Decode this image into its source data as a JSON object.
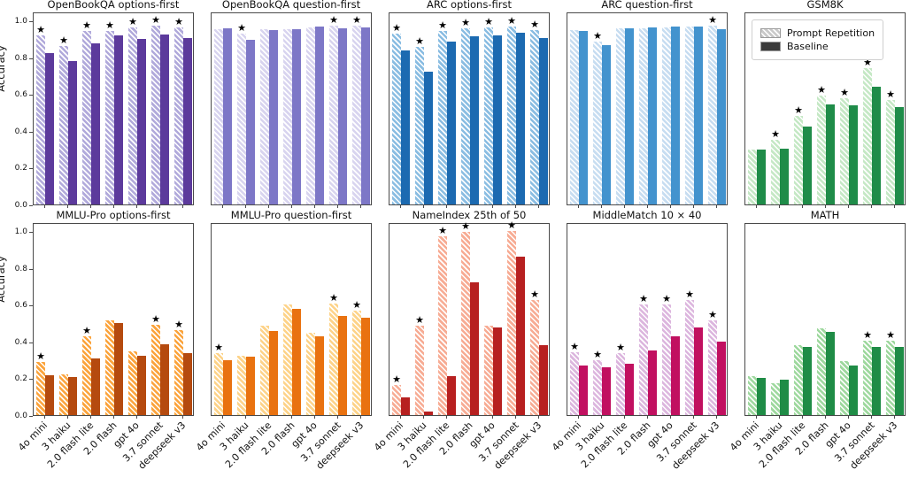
{
  "figure": {
    "ylabel": "Accuracy",
    "yticks": [
      "0.0",
      "0.2",
      "0.4",
      "0.6",
      "0.8",
      "1.0"
    ],
    "legend": {
      "location": "GSM8K top-left",
      "items": [
        {
          "label": "Prompt Repetition",
          "swatch": "hatched-gray",
          "color": "#c9c9c9"
        },
        {
          "label": "Baseline",
          "swatch": "solid-darkgray",
          "color": "#3a3a3a"
        }
      ]
    }
  },
  "chart_data": [
    {
      "type": "bar",
      "title": "OpenBookQA options-first",
      "row": 0,
      "col": 0,
      "categories": [
        "4o mini",
        "3 haiku",
        "2.0 flash lite",
        "2.0 flash",
        "gpt 4o",
        "3.7 sonnet",
        "deepseek v3"
      ],
      "ylim": [
        0,
        1.0
      ],
      "series": [
        {
          "name": "Prompt Repetition",
          "values": [
            0.92,
            0.86,
            0.94,
            0.94,
            0.96,
            0.97,
            0.96
          ]
        },
        {
          "name": "Baseline",
          "values": [
            0.82,
            0.78,
            0.875,
            0.92,
            0.9,
            0.925,
            0.905
          ]
        }
      ],
      "significance_stars": [
        true,
        true,
        true,
        true,
        true,
        true,
        true
      ],
      "colors": {
        "repetition": "#b1aadb",
        "baseline": "#5c3a9c"
      }
    },
    {
      "type": "bar",
      "title": "OpenBookQA question-first",
      "row": 0,
      "col": 1,
      "categories": [
        "4o mini",
        "3 haiku",
        "2.0 flash lite",
        "2.0 flash",
        "gpt 4o",
        "3.7 sonnet",
        "deepseek v3"
      ],
      "ylim": [
        0,
        1.0
      ],
      "series": [
        {
          "name": "Prompt Repetition",
          "values": [
            0.952,
            0.93,
            0.952,
            0.952,
            0.962,
            0.972,
            0.972
          ]
        },
        {
          "name": "Baseline",
          "values": [
            0.955,
            0.895,
            0.948,
            0.952,
            0.968,
            0.958,
            0.962
          ]
        }
      ],
      "significance_stars": [
        false,
        true,
        false,
        false,
        false,
        true,
        true
      ],
      "colors": {
        "repetition": "#d8d4ef",
        "baseline": "#7d77c7"
      }
    },
    {
      "type": "bar",
      "title": "ARC options-first",
      "row": 0,
      "col": 2,
      "categories": [
        "4o mini",
        "3 haiku",
        "2.0 flash lite",
        "2.0 flash",
        "gpt 4o",
        "3.7 sonnet",
        "deepseek v3"
      ],
      "ylim": [
        0,
        1.0
      ],
      "series": [
        {
          "name": "Prompt Repetition",
          "values": [
            0.93,
            0.855,
            0.94,
            0.955,
            0.96,
            0.965,
            0.945
          ]
        },
        {
          "name": "Baseline",
          "values": [
            0.835,
            0.72,
            0.885,
            0.915,
            0.92,
            0.935,
            0.905
          ]
        }
      ],
      "significance_stars": [
        true,
        true,
        true,
        true,
        true,
        true,
        true
      ],
      "colors": {
        "repetition": "#8abde2",
        "baseline": "#1c6ab1"
      }
    },
    {
      "type": "bar",
      "title": "ARC question-first",
      "row": 0,
      "col": 3,
      "categories": [
        "4o mini",
        "3 haiku",
        "2.0 flash lite",
        "2.0 flash",
        "gpt 4o",
        "3.7 sonnet",
        "deepseek v3"
      ],
      "ylim": [
        0,
        1.0
      ],
      "series": [
        {
          "name": "Prompt Repetition",
          "values": [
            0.945,
            0.885,
            0.955,
            0.955,
            0.962,
            0.965,
            0.972
          ]
        },
        {
          "name": "Baseline",
          "values": [
            0.94,
            0.865,
            0.957,
            0.96,
            0.966,
            0.968,
            0.952
          ]
        }
      ],
      "significance_stars": [
        false,
        true,
        false,
        false,
        false,
        false,
        true
      ],
      "colors": {
        "repetition": "#c7ddf1",
        "baseline": "#4393ce"
      }
    },
    {
      "type": "bar",
      "title": "GSM8K",
      "row": 0,
      "col": 4,
      "has_legend": true,
      "categories": [
        "4o mini",
        "3 haiku",
        "2.0 flash lite",
        "2.0 flash",
        "gpt 4o",
        "3.7 sonnet",
        "deepseek v3"
      ],
      "ylim": [
        0,
        1.0
      ],
      "series": [
        {
          "name": "Prompt Repetition",
          "values": [
            0.3,
            0.35,
            0.48,
            0.59,
            0.575,
            0.74,
            0.565
          ]
        },
        {
          "name": "Baseline",
          "values": [
            0.3,
            0.305,
            0.425,
            0.545,
            0.54,
            0.64,
            0.53
          ]
        }
      ],
      "significance_stars": [
        false,
        true,
        true,
        true,
        true,
        true,
        true
      ],
      "colors": {
        "repetition": "#c5e8c5",
        "baseline": "#1f8c49"
      }
    },
    {
      "type": "bar",
      "title": "MMLU-Pro options-first",
      "row": 1,
      "col": 0,
      "categories": [
        "4o mini",
        "3 haiku",
        "2.0 flash lite",
        "2.0 flash",
        "gpt 4o",
        "3.7 sonnet",
        "deepseek v3"
      ],
      "ylim": [
        0,
        1.0
      ],
      "series": [
        {
          "name": "Prompt Repetition",
          "values": [
            0.29,
            0.22,
            0.43,
            0.515,
            0.345,
            0.49,
            0.46
          ]
        },
        {
          "name": "Baseline",
          "values": [
            0.215,
            0.205,
            0.31,
            0.5,
            0.32,
            0.385,
            0.335
          ]
        }
      ],
      "significance_stars": [
        true,
        false,
        true,
        false,
        false,
        true,
        true
      ],
      "colors": {
        "repetition": "#fba43d",
        "baseline": "#b54a0f"
      }
    },
    {
      "type": "bar",
      "title": "MMLU-Pro question-first",
      "row": 1,
      "col": 1,
      "categories": [
        "4o mini",
        "3 haiku",
        "2.0 flash lite",
        "2.0 flash",
        "gpt 4o",
        "3.7 sonnet",
        "deepseek v3"
      ],
      "ylim": [
        0,
        1.0
      ],
      "series": [
        {
          "name": "Prompt Repetition",
          "values": [
            0.335,
            0.32,
            0.485,
            0.6,
            0.445,
            0.605,
            0.565
          ]
        },
        {
          "name": "Baseline",
          "values": [
            0.3,
            0.315,
            0.455,
            0.575,
            0.43,
            0.54,
            0.53
          ]
        }
      ],
      "significance_stars": [
        true,
        false,
        false,
        false,
        false,
        true,
        true
      ],
      "colors": {
        "repetition": "#fdd389",
        "baseline": "#e97210"
      }
    },
    {
      "type": "bar",
      "title": "NameIndex 25th of 50",
      "row": 1,
      "col": 2,
      "categories": [
        "4o mini",
        "3 haiku",
        "2.0 flash lite",
        "2.0 flash",
        "gpt 4o",
        "3.7 sonnet",
        "deepseek v3"
      ],
      "ylim": [
        0,
        1.0
      ],
      "series": [
        {
          "name": "Prompt Repetition",
          "values": [
            0.165,
            0.485,
            0.97,
            0.995,
            0.485,
            1.0,
            0.625
          ]
        },
        {
          "name": "Baseline",
          "values": [
            0.095,
            0.02,
            0.21,
            0.72,
            0.475,
            0.86,
            0.38
          ]
        }
      ],
      "significance_stars": [
        true,
        true,
        true,
        true,
        false,
        true,
        true
      ],
      "colors": {
        "repetition": "#f7ac94",
        "baseline": "#b72020"
      }
    },
    {
      "type": "bar",
      "title": "MiddleMatch 10 × 40",
      "row": 1,
      "col": 3,
      "categories": [
        "4o mini",
        "3 haiku",
        "2.0 flash lite",
        "2.0 flash",
        "gpt 4o",
        "3.7 sonnet",
        "deepseek v3"
      ],
      "ylim": [
        0,
        1.0
      ],
      "series": [
        {
          "name": "Prompt Repetition",
          "values": [
            0.34,
            0.3,
            0.335,
            0.6,
            0.6,
            0.625,
            0.515
          ]
        },
        {
          "name": "Baseline",
          "values": [
            0.27,
            0.26,
            0.28,
            0.35,
            0.43,
            0.475,
            0.4
          ]
        }
      ],
      "significance_stars": [
        true,
        true,
        true,
        true,
        true,
        true,
        true
      ],
      "colors": {
        "repetition": "#dcb6de",
        "baseline": "#c11060"
      }
    },
    {
      "type": "bar",
      "title": "MATH",
      "row": 1,
      "col": 4,
      "categories": [
        "4o mini",
        "3 haiku",
        "2.0 flash lite",
        "2.0 flash",
        "gpt 4o",
        "3.7 sonnet",
        "deepseek v3"
      ],
      "ylim": [
        0,
        1.0
      ],
      "series": [
        {
          "name": "Prompt Repetition",
          "values": [
            0.21,
            0.175,
            0.38,
            0.47,
            0.295,
            0.405,
            0.405
          ]
        },
        {
          "name": "Baseline",
          "values": [
            0.2,
            0.19,
            0.37,
            0.45,
            0.27,
            0.37,
            0.37
          ]
        }
      ],
      "significance_stars": [
        false,
        false,
        false,
        false,
        false,
        true,
        true
      ],
      "colors": {
        "repetition": "#9ed89e",
        "baseline": "#1f8c46"
      }
    }
  ]
}
